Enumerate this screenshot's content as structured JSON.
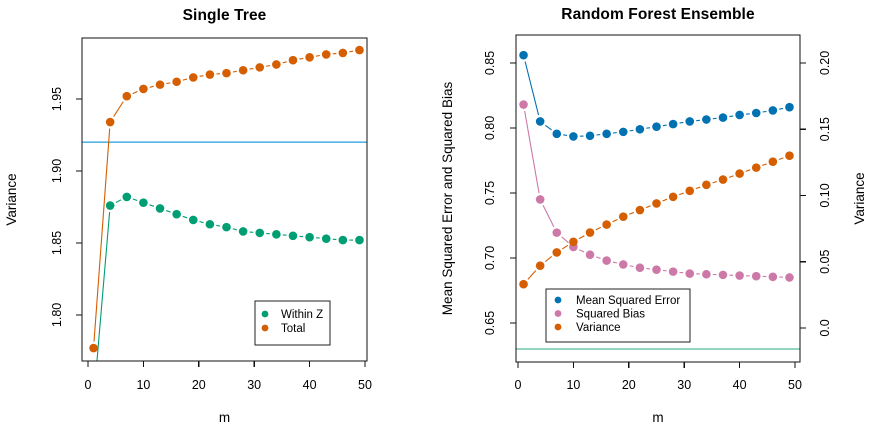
{
  "figure": {
    "background": "#ffffff",
    "text_color": "#000000"
  },
  "chart_data": [
    {
      "type": "scatter",
      "title": "Single Tree",
      "xlabel": "m",
      "ylabel_left": "Variance",
      "xlim": [
        -1.083,
        50.361
      ],
      "ylim_left": [
        1.768,
        1.9924
      ],
      "x": [
        1,
        4,
        7,
        10,
        13,
        16,
        19,
        22,
        25,
        28,
        31,
        34,
        37,
        40,
        43,
        46,
        49
      ],
      "series": [
        {
          "name": "Within Z",
          "color": "#009E73",
          "axis": "left",
          "values": [
            1.74,
            1.876,
            1.882,
            1.878,
            1.874,
            1.87,
            1.866,
            1.863,
            1.861,
            1.858,
            1.857,
            1.856,
            1.855,
            1.854,
            1.853,
            1.852,
            1.852
          ]
        },
        {
          "name": "Total",
          "color": "#D55E00",
          "axis": "left",
          "values": [
            1.777,
            1.934,
            1.952,
            1.957,
            1.96,
            1.962,
            1.965,
            1.967,
            1.968,
            1.97,
            1.972,
            1.974,
            1.977,
            1.979,
            1.981,
            1.982,
            1.984
          ]
        }
      ],
      "hlines": [
        {
          "value": 1.92,
          "axis": "left",
          "color": "#56B4E9"
        }
      ],
      "x_ticks": [
        {
          "v": 0,
          "label": "0"
        },
        {
          "v": 10,
          "label": "10"
        },
        {
          "v": 20,
          "label": "20"
        },
        {
          "v": 30,
          "label": "30"
        },
        {
          "v": 40,
          "label": "40"
        },
        {
          "v": 50,
          "label": "50"
        }
      ],
      "y_ticks_left": [
        {
          "v": 1.8,
          "label": "1.80"
        },
        {
          "v": 1.85,
          "label": "1.85"
        },
        {
          "v": 1.9,
          "label": "1.90"
        },
        {
          "v": 1.95,
          "label": "1.95"
        }
      ],
      "legend": {
        "items": [
          "Within Z",
          "Total"
        ],
        "position": "inside-bottom-right"
      },
      "grid": "off"
    },
    {
      "type": "scatter",
      "title": "Random Forest Ensemble",
      "xlabel": "m",
      "ylabel_left": "Mean Squared Error and Squared Bias",
      "ylabel_right": "Variance",
      "xlim": [
        -0.36,
        50.9
      ],
      "ylim_left": [
        0.62,
        0.8715
      ],
      "ylim_right": [
        -0.0257,
        0.2211
      ],
      "x": [
        1,
        4,
        7,
        10,
        13,
        16,
        19,
        22,
        25,
        28,
        31,
        34,
        37,
        40,
        43,
        46,
        49
      ],
      "series": [
        {
          "name": "Mean Squared Error",
          "color": "#0072B2",
          "axis": "left",
          "values": [
            0.856,
            0.805,
            0.7955,
            0.7935,
            0.794,
            0.7955,
            0.797,
            0.799,
            0.801,
            0.803,
            0.805,
            0.8065,
            0.808,
            0.81,
            0.8115,
            0.8135,
            0.816
          ]
        },
        {
          "name": "Squared Bias",
          "color": "#CC79A7",
          "axis": "left",
          "values": [
            0.818,
            0.745,
            0.7195,
            0.7085,
            0.7025,
            0.698,
            0.695,
            0.6925,
            0.691,
            0.6895,
            0.688,
            0.6875,
            0.687,
            0.6865,
            0.686,
            0.6855,
            0.685
          ]
        },
        {
          "name": "Variance",
          "color": "#D55E00",
          "axis": "right",
          "values": [
            0.033,
            0.047,
            0.057,
            0.065,
            0.072,
            0.078,
            0.084,
            0.089,
            0.094,
            0.099,
            0.1035,
            0.108,
            0.112,
            0.1165,
            0.121,
            0.1255,
            0.13
          ]
        }
      ],
      "hlines": [
        {
          "value": 0.63,
          "axis": "left",
          "color": "#6FC7A6"
        }
      ],
      "x_ticks": [
        {
          "v": 0,
          "label": "0"
        },
        {
          "v": 10,
          "label": "10"
        },
        {
          "v": 20,
          "label": "20"
        },
        {
          "v": 30,
          "label": "30"
        },
        {
          "v": 40,
          "label": "40"
        },
        {
          "v": 50,
          "label": "50"
        }
      ],
      "y_ticks_left": [
        {
          "v": 0.65,
          "label": "0.65"
        },
        {
          "v": 0.7,
          "label": "0.70"
        },
        {
          "v": 0.75,
          "label": "0.75"
        },
        {
          "v": 0.8,
          "label": "0.80"
        },
        {
          "v": 0.85,
          "label": "0.85"
        }
      ],
      "y_ticks_right": [
        {
          "v": 0.0,
          "label": "0.0"
        },
        {
          "v": 0.05,
          "label": "0.05"
        },
        {
          "v": 0.1,
          "label": "0.10"
        },
        {
          "v": 0.15,
          "label": "0.15"
        },
        {
          "v": 0.2,
          "label": "0.20"
        }
      ],
      "legend": {
        "items": [
          "Mean Squared Error",
          "Squared Bias",
          "Variance"
        ],
        "position": "inside-bottom-left"
      },
      "grid": "off"
    }
  ]
}
